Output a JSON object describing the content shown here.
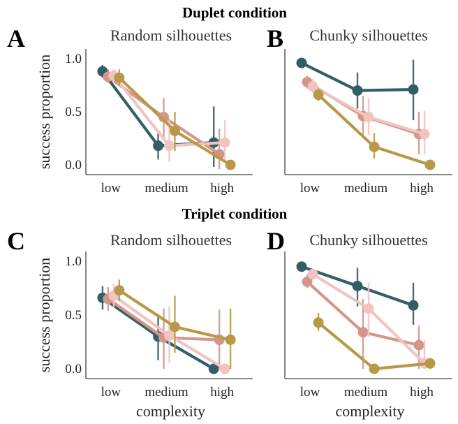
{
  "figure": {
    "top_heading": "Duplet condition",
    "bottom_heading": "Triplet condition"
  },
  "series_colors": [
    "#325f66",
    "#d4968a",
    "#f0c4c0",
    "#b8994a"
  ],
  "chart_data": [
    {
      "type": "line",
      "letter": "A",
      "title": "Random silhouettes",
      "ylabel": "success proportion",
      "xlabel": "",
      "categories": [
        "low",
        "medium",
        "high"
      ],
      "ylim": [
        -0.05,
        1.1
      ],
      "yticks": [
        "0.0",
        "0.5",
        "1.0"
      ],
      "series": [
        {
          "color": "#325f66",
          "x": [
            0,
            1,
            2
          ],
          "y": [
            0.88,
            0.18,
            0.21
          ],
          "err": [
            [
              0.82,
              0.94
            ],
            [
              0.05,
              0.32
            ],
            [
              -0.02,
              0.55
            ]
          ]
        },
        {
          "color": "#d4968a",
          "x": [
            0.1,
            1.1,
            2.1
          ],
          "y": [
            0.83,
            0.45,
            0.1
          ],
          "err": [
            [
              0.77,
              0.9
            ],
            [
              0.25,
              0.63
            ],
            [
              -0.04,
              0.34
            ]
          ]
        },
        {
          "color": "#f0c4c0",
          "x": [
            0.2,
            1.2,
            2.2
          ],
          "y": [
            0.84,
            0.18,
            0.21
          ],
          "err": [
            [
              0.78,
              0.9
            ],
            [
              0.03,
              0.42
            ],
            [
              0.05,
              0.42
            ]
          ]
        },
        {
          "color": "#b8994a",
          "x": [
            0.3,
            1.3,
            2.3
          ],
          "y": [
            0.82,
            0.32,
            0.0
          ],
          "err": [
            [
              0.75,
              0.9
            ],
            [
              0.13,
              0.5
            ],
            [
              0.0,
              0.0
            ]
          ]
        }
      ]
    },
    {
      "type": "line",
      "letter": "B",
      "title": "Chunky silhouettes",
      "ylabel": "",
      "xlabel": "",
      "categories": [
        "low",
        "medium",
        "high"
      ],
      "ylim": [
        -0.05,
        1.1
      ],
      "yticks": [],
      "series": [
        {
          "color": "#325f66",
          "x": [
            0,
            1,
            2
          ],
          "y": [
            0.96,
            0.7,
            0.71
          ],
          "err": [
            [
              0.93,
              0.99
            ],
            [
              0.53,
              0.87
            ],
            [
              0.42,
              0.99
            ]
          ]
        },
        {
          "color": "#d4968a",
          "x": [
            0.1,
            1.1,
            2.1
          ],
          "y": [
            0.78,
            0.46,
            0.29
          ],
          "err": [
            [
              0.72,
              0.84
            ],
            [
              0.28,
              0.65
            ],
            [
              0.1,
              0.5
            ]
          ]
        },
        {
          "color": "#f0c4c0",
          "x": [
            0.2,
            1.2,
            2.2
          ],
          "y": [
            0.74,
            0.45,
            0.29
          ],
          "err": [
            [
              0.68,
              0.81
            ],
            [
              0.28,
              0.63
            ],
            [
              0.1,
              0.51
            ]
          ]
        },
        {
          "color": "#b8994a",
          "x": [
            0.3,
            1.3,
            2.3
          ],
          "y": [
            0.66,
            0.17,
            0.0
          ],
          "err": [
            [
              0.6,
              0.72
            ],
            [
              0.06,
              0.3
            ],
            [
              0.0,
              0.0
            ]
          ]
        }
      ]
    },
    {
      "type": "line",
      "letter": "C",
      "title": "Random silhouettes",
      "ylabel": "success proportion",
      "xlabel": "complexity",
      "categories": [
        "low",
        "medium",
        "high"
      ],
      "ylim": [
        -0.05,
        1.1
      ],
      "yticks": [
        "0.0",
        "0.5",
        "1.0"
      ],
      "series": [
        {
          "color": "#325f66",
          "x": [
            0,
            1,
            2
          ],
          "y": [
            0.66,
            0.3,
            0.0
          ],
          "err": [
            [
              0.55,
              0.77
            ],
            [
              0.08,
              0.51
            ],
            [
              0.0,
              0.0
            ]
          ]
        },
        {
          "color": "#d4968a",
          "x": [
            0.1,
            1.1,
            2.1
          ],
          "y": [
            0.65,
            0.29,
            0.27
          ],
          "err": [
            [
              0.54,
              0.76
            ],
            [
              0.0,
              0.56
            ],
            [
              0.0,
              0.55
            ]
          ]
        },
        {
          "color": "#f0c4c0",
          "x": [
            0.2,
            1.2,
            2.2
          ],
          "y": [
            0.68,
            0.31,
            0.0
          ],
          "err": [
            [
              0.57,
              0.79
            ],
            [
              0.05,
              0.58
            ],
            [
              0.0,
              0.0
            ]
          ]
        },
        {
          "color": "#b8994a",
          "x": [
            0.3,
            1.3,
            2.3
          ],
          "y": [
            0.73,
            0.39,
            0.27
          ],
          "err": [
            [
              0.63,
              0.83
            ],
            [
              0.15,
              0.68
            ],
            [
              0.0,
              0.56
            ]
          ]
        }
      ]
    },
    {
      "type": "line",
      "letter": "D",
      "title": "Chunky silhouettes",
      "ylabel": "",
      "xlabel": "complexity",
      "categories": [
        "low",
        "medium",
        "high"
      ],
      "ylim": [
        -0.05,
        1.1
      ],
      "yticks": [],
      "series": [
        {
          "color": "#325f66",
          "x": [
            0,
            1,
            2
          ],
          "y": [
            0.95,
            0.77,
            0.59
          ],
          "err": [
            [
              0.92,
              0.98
            ],
            [
              0.58,
              0.94
            ],
            [
              0.41,
              0.8
            ]
          ]
        },
        {
          "color": "#d4968a",
          "x": [
            0.1,
            1.1,
            2.1
          ],
          "y": [
            0.81,
            0.34,
            0.22
          ],
          "err": [
            [
              0.75,
              0.88
            ],
            [
              0.0,
              0.65
            ],
            [
              0.0,
              0.4
            ]
          ]
        },
        {
          "color": "#f0c4c0",
          "x": [
            0.2,
            1.2,
            2.2
          ],
          "y": [
            0.88,
            0.56,
            0.05
          ],
          "err": [
            [
              0.83,
              0.93
            ],
            [
              0.3,
              0.8
            ],
            [
              0.0,
              0.27
            ]
          ]
        },
        {
          "color": "#b8994a",
          "x": [
            0.3,
            1.3,
            2.3
          ],
          "y": [
            0.43,
            0.0,
            0.05
          ],
          "err": [
            [
              0.35,
              0.52
            ],
            [
              0.0,
              0.0
            ],
            [
              0.0,
              0.1
            ]
          ]
        }
      ]
    }
  ]
}
